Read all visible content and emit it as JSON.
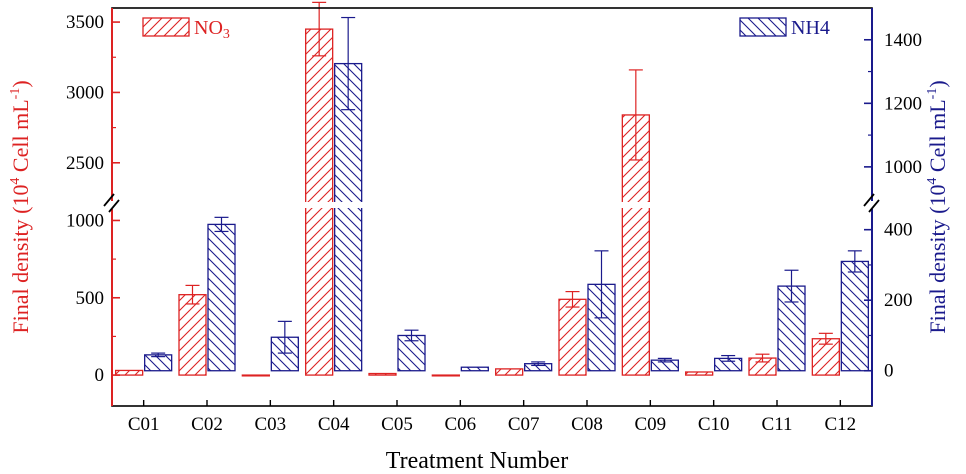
{
  "chart_data": {
    "type": "bar",
    "xlabel": "Treatment Number",
    "ylabel_left": "Final density (10",
    "ylabel_left_sup": "4",
    "ylabel_left_unit": " Cell mL",
    "ylabel_left_unit_sup": "-1",
    "ylabel_left_close": ")",
    "ylabel_right": "Final density (10",
    "ylabel_right_sup": "4",
    "ylabel_right_unit": " Cell mL",
    "ylabel_right_unit_sup": "-1",
    "ylabel_right_close": ")",
    "categories": [
      "C01",
      "C02",
      "C03",
      "C04",
      "C05",
      "C06",
      "C07",
      "C08",
      "C09",
      "C10",
      "C11",
      "C12"
    ],
    "left_axis": {
      "broken": true,
      "lower_range": [
        -200,
        1100
      ],
      "upper_range": [
        2200,
        3600
      ],
      "lower_ticks": [
        0,
        500,
        1000
      ],
      "upper_ticks": [
        2500,
        3000,
        3500
      ]
    },
    "right_axis": {
      "broken": true,
      "lower_range": [
        -100,
        470
      ],
      "upper_range": [
        880,
        1500
      ],
      "lower_ticks": [
        0,
        200,
        400
      ],
      "upper_ticks": [
        1000,
        1200,
        1400
      ]
    },
    "series": [
      {
        "name_main": "NO",
        "name_sub": "3",
        "axis": "left",
        "color": "#dd2222",
        "values": [
          30,
          520,
          0,
          3450,
          10,
          0,
          40,
          490,
          2840,
          20,
          110,
          235
        ],
        "errors": [
          0,
          60,
          0,
          190,
          0,
          0,
          0,
          50,
          320,
          0,
          25,
          35
        ]
      },
      {
        "name_main": "NH",
        "name_sub": "4",
        "axis": "right",
        "color": "#1a1a8c",
        "values": [
          45,
          415,
          95,
          1325,
          100,
          10,
          20,
          245,
          30,
          35,
          240,
          310
        ],
        "errors": [
          5,
          20,
          45,
          145,
          15,
          0,
          5,
          95,
          5,
          8,
          45,
          30
        ]
      }
    ],
    "grid": false,
    "legend_placement": "top-left and top-right"
  }
}
